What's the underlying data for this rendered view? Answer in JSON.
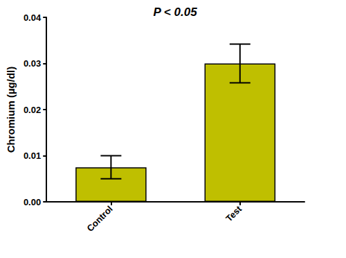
{
  "chart_data": {
    "type": "bar",
    "title": "P < 0.05",
    "y_label": "Chromium (µg/dl)",
    "categories": [
      "Control",
      "Test"
    ],
    "values": [
      0.0075,
      0.03
    ],
    "errors": [
      0.0025,
      0.0042
    ],
    "color": "#bfbf00",
    "ylim": [
      0,
      0.04
    ],
    "yticks": [
      {
        "value": 0,
        "label": "0.00"
      },
      0.01,
      0.02,
      0.03,
      0.04
    ],
    "grid": false
  }
}
